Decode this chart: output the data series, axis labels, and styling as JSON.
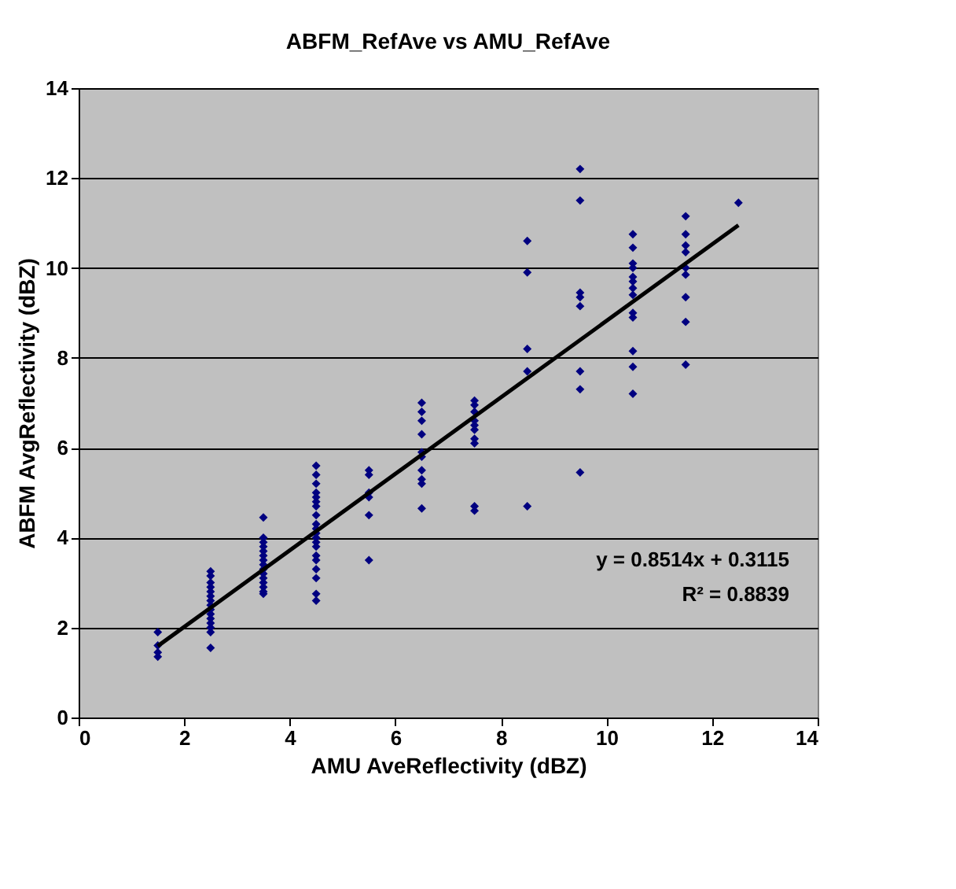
{
  "chart_data": {
    "type": "scatter",
    "title": "ABFM_RefAve vs AMU_RefAve",
    "xlabel": "AMU AveReflectivity (dBZ)",
    "ylabel": "ABFM AvgReflectivity (dBZ)",
    "xlim": [
      0,
      14
    ],
    "xticks": [
      0,
      2,
      4,
      6,
      8,
      10,
      12,
      14
    ],
    "ylim": [
      0,
      14
    ],
    "yticks": [
      0,
      2,
      4,
      6,
      8,
      10,
      12,
      14
    ],
    "grid": "y",
    "marker": "diamond",
    "annotations": [
      "y = 0.8514x + 0.3115",
      "R² = 0.8839"
    ],
    "series": [
      {
        "color": "#000080",
        "x": [
          1.5,
          1.5,
          1.5,
          1.5,
          2.5,
          2.5,
          2.5,
          2.5,
          2.5,
          2.5,
          2.5,
          2.5,
          2.5,
          2.5,
          2.5,
          2.5,
          2.5,
          2.5,
          2.5,
          3.5,
          3.5,
          3.5,
          3.5,
          3.5,
          3.5,
          3.5,
          3.5,
          3.5,
          3.5,
          3.5,
          3.5,
          3.5,
          3.5,
          3.5,
          4.5,
          4.5,
          4.5,
          4.5,
          4.5,
          4.5,
          4.5,
          4.5,
          4.5,
          4.5,
          4.5,
          4.5,
          4.5,
          4.5,
          4.5,
          4.5,
          4.5,
          4.5,
          4.5,
          4.5,
          5.5,
          5.5,
          5.5,
          5.5,
          5.5,
          5.5,
          6.5,
          6.5,
          6.5,
          6.5,
          6.5,
          6.5,
          6.5,
          6.5,
          6.5,
          6.5,
          7.5,
          7.5,
          7.5,
          7.5,
          7.5,
          7.5,
          7.5,
          7.5,
          7.5,
          7.5,
          8.5,
          8.5,
          8.5,
          8.5,
          8.5,
          9.5,
          9.5,
          9.5,
          9.5,
          9.5,
          9.5,
          9.5,
          9.5,
          10.5,
          10.5,
          10.5,
          10.5,
          10.5,
          10.5,
          10.5,
          10.5,
          10.5,
          10.5,
          10.5,
          10.5,
          10.5,
          11.5,
          11.5,
          11.5,
          11.5,
          11.5,
          11.5,
          11.5,
          11.5,
          11.5,
          12.5
        ],
        "values": [
          1.9,
          1.6,
          1.45,
          1.35,
          3.25,
          3.15,
          3.0,
          2.9,
          2.8,
          2.7,
          2.6,
          2.5,
          2.4,
          2.3,
          2.2,
          2.1,
          2.0,
          1.9,
          1.55,
          4.45,
          4.0,
          3.9,
          3.8,
          3.7,
          3.6,
          3.5,
          3.4,
          3.3,
          3.2,
          3.1,
          3.0,
          2.9,
          2.8,
          2.75,
          5.6,
          5.4,
          5.2,
          5.0,
          4.9,
          4.8,
          4.7,
          4.5,
          4.3,
          4.2,
          4.1,
          4.0,
          3.9,
          3.8,
          3.6,
          3.5,
          3.3,
          3.1,
          2.75,
          2.6,
          5.5,
          5.4,
          5.0,
          4.9,
          4.5,
          3.5,
          7.0,
          6.8,
          6.6,
          6.3,
          5.9,
          5.8,
          5.5,
          5.3,
          5.2,
          4.65,
          7.05,
          6.95,
          6.8,
          6.6,
          6.5,
          6.4,
          6.2,
          6.1,
          4.7,
          4.6,
          10.6,
          9.9,
          8.2,
          7.7,
          4.7,
          12.2,
          11.5,
          9.45,
          9.35,
          9.15,
          7.7,
          7.3,
          5.45,
          10.75,
          10.45,
          10.1,
          10.0,
          9.8,
          9.7,
          9.55,
          9.4,
          9.0,
          8.9,
          8.15,
          7.8,
          7.2,
          11.15,
          10.75,
          10.5,
          10.35,
          10.0,
          9.85,
          9.35,
          8.8,
          7.85,
          11.45
        ]
      },
      {
        "color": "#000000",
        "type": "line",
        "line_style": "solid",
        "marker": "none",
        "x": [
          1.5,
          12.5
        ],
        "values": [
          1.59,
          10.95
        ]
      }
    ]
  }
}
